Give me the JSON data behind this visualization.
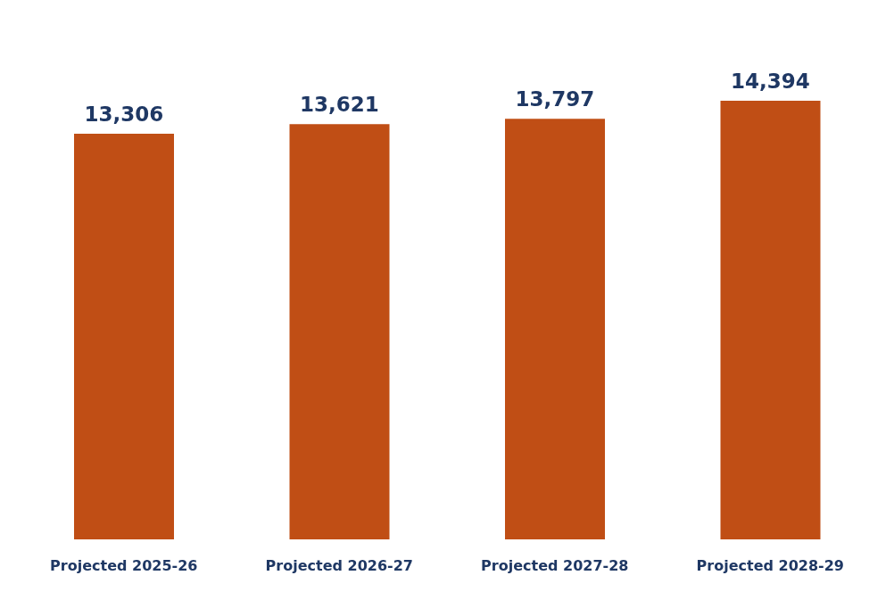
{
  "chart_data": {
    "type": "bar",
    "categories": [
      "Projected 2025-26",
      "Projected 2026-27",
      "Projected 2027-28",
      "Projected 2028-29"
    ],
    "values": [
      13306,
      13621,
      13797,
      14394
    ],
    "value_labels": [
      "13,306",
      "13,621",
      "13,797",
      "14,394"
    ],
    "color": "#c04e15"
  }
}
